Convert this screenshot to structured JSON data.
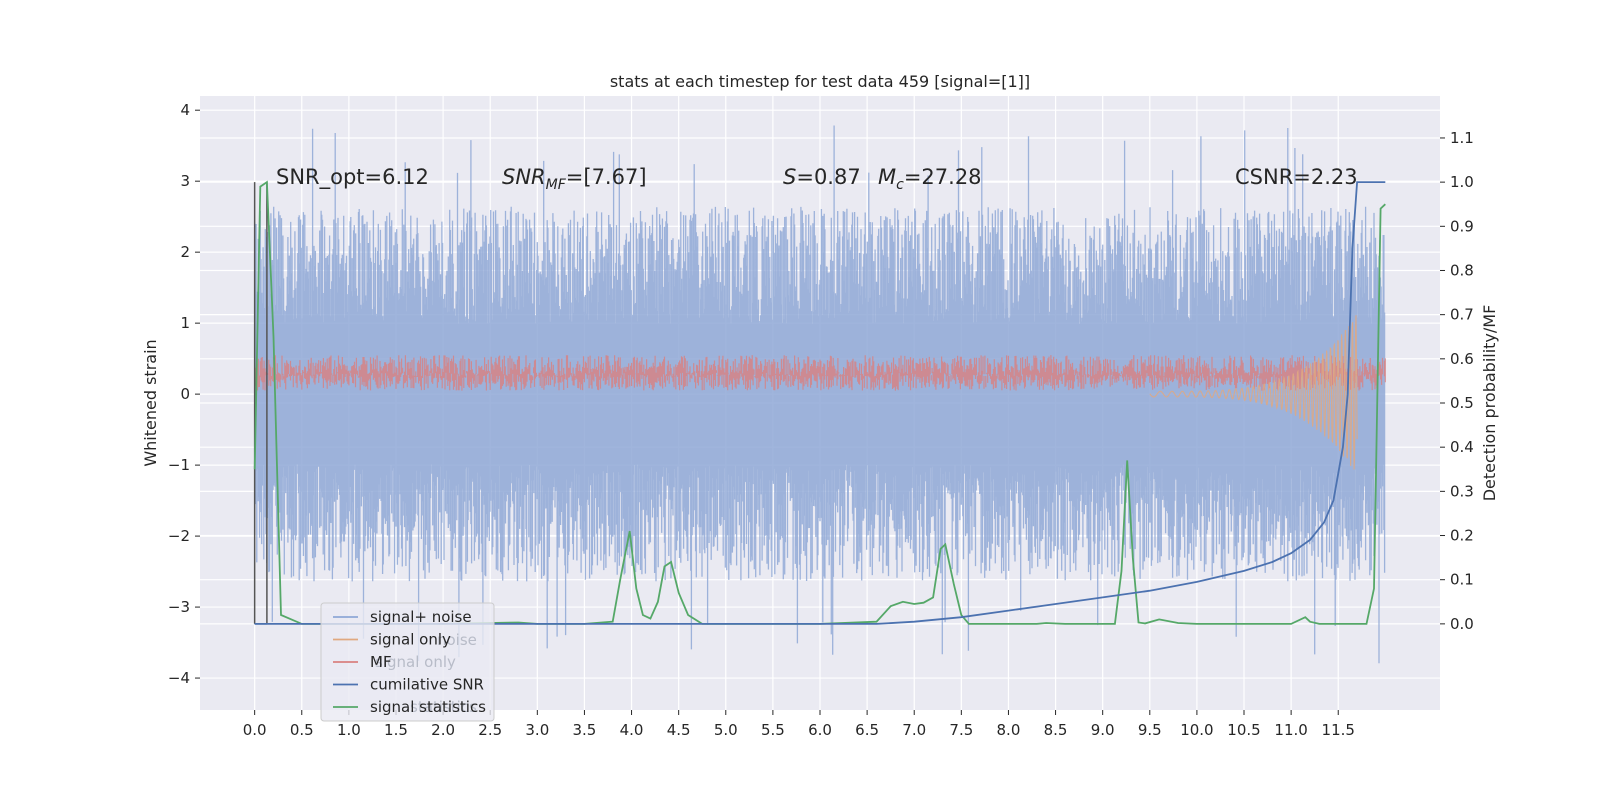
{
  "chart_data": {
    "type": "line",
    "title": "stats at each timestep for test data 459 [signal=[1]]",
    "xlabel": "",
    "ylabel_left": "Whitened strain",
    "ylabel_right": "Detection probability/MF",
    "xlim": [
      -0.58,
      12.58
    ],
    "ylim_left": [
      -4.45,
      4.2
    ],
    "ylim_right": [
      -0.195,
      1.195
    ],
    "x_ticks": [
      "0.0",
      "0.5",
      "1.0",
      "1.5",
      "2.0",
      "2.5",
      "3.0",
      "3.5",
      "4.0",
      "4.5",
      "5.0",
      "5.5",
      "6.0",
      "6.5",
      "7.0",
      "7.5",
      "8.0",
      "8.5",
      "9.0",
      "9.5",
      "10.0",
      "10.5",
      "11.0",
      "11.5"
    ],
    "y_ticks_left": [
      "−4",
      "−3",
      "−2",
      "−1",
      "0",
      "1",
      "2",
      "3",
      "4"
    ],
    "y_ticks_right": [
      "0.0",
      "0.1",
      "0.2",
      "0.3",
      "0.4",
      "0.5",
      "0.6",
      "0.7",
      "0.8",
      "0.9",
      "1.0",
      "1.1"
    ],
    "annotations": {
      "snr_opt": "SNR_opt=6.12",
      "snr_mf_sym": "SNR",
      "snr_mf_sub": "MF",
      "snr_mf_val": "=[7.67]",
      "s_sym": "S",
      "s_val": "=0.87",
      "mc_sym": "M",
      "mc_sub": "c",
      "mc_val": "=27.28",
      "csnr": "CSNR=2.23"
    },
    "legend_position": "lower-left",
    "legend": [
      {
        "label": "signal+ noise",
        "color": "#8fa8d6"
      },
      {
        "label": "signal only",
        "color": "#e0a880"
      },
      {
        "label": "MF",
        "color": "#d98080"
      },
      {
        "label": "cumilative SNR",
        "color": "#4c72b0"
      },
      {
        "label": "signal statistics",
        "color": "#55a868"
      }
    ],
    "ghost_legend": {
      "noise_suffix": "noise",
      "signal_only": "signal only",
      "statistics": "statistics"
    },
    "series": [
      {
        "name": "signal statistics",
        "axis": "right",
        "color": "#55a868",
        "x": [
          0,
          0.06,
          0.13,
          0.2,
          0.28,
          0.5,
          1.0,
          2.0,
          2.8,
          3.0,
          3.5,
          3.8,
          3.88,
          3.98,
          4.05,
          4.12,
          4.2,
          4.28,
          4.35,
          4.42,
          4.5,
          4.6,
          4.75,
          5.0,
          5.5,
          6.0,
          6.6,
          6.75,
          6.88,
          7.0,
          7.1,
          7.2,
          7.28,
          7.33,
          7.42,
          7.5,
          7.58,
          7.7,
          8.0,
          8.3,
          8.4,
          8.6,
          9.0,
          9.13,
          9.2,
          9.26,
          9.32,
          9.38,
          9.45,
          9.6,
          9.8,
          10.0,
          10.5,
          11.0,
          11.15,
          11.2,
          11.3,
          11.5,
          11.8,
          11.88,
          11.95,
          12.0
        ],
        "y": [
          0.35,
          0.99,
          1.0,
          0.65,
          0.02,
          0.0,
          0.0,
          0.0,
          0.003,
          0.0,
          0.0,
          0.005,
          0.1,
          0.21,
          0.08,
          0.02,
          0.012,
          0.05,
          0.13,
          0.14,
          0.07,
          0.02,
          0.0,
          0.0,
          0.0,
          0.0,
          0.005,
          0.04,
          0.05,
          0.045,
          0.048,
          0.06,
          0.17,
          0.18,
          0.09,
          0.02,
          0.0,
          0.0,
          0.0,
          0.0,
          0.002,
          0.0,
          0.0,
          0.0,
          0.12,
          0.37,
          0.15,
          0.003,
          0.001,
          0.01,
          0.002,
          0.0,
          0.0,
          0.0,
          0.015,
          0.005,
          0.0,
          0.0,
          0.0,
          0.08,
          0.94,
          0.95
        ]
      },
      {
        "name": "cumilative SNR",
        "axis": "right",
        "color": "#4c72b0",
        "x": [
          0,
          6.6,
          7.0,
          7.5,
          8.0,
          8.5,
          9.0,
          9.5,
          10.0,
          10.5,
          10.8,
          11.0,
          11.2,
          11.35,
          11.45,
          11.55,
          11.6,
          11.62,
          11.65,
          11.7,
          12.0
        ],
        "y": [
          0,
          0,
          0.005,
          0.015,
          0.03,
          0.045,
          0.06,
          0.075,
          0.095,
          0.12,
          0.14,
          0.16,
          0.19,
          0.23,
          0.28,
          0.4,
          0.52,
          0.65,
          0.85,
          1.0,
          1.0
        ]
      }
    ],
    "noise_band": {
      "name": "signal+ noise",
      "axis": "left",
      "color": "#8fa8d6",
      "x_range": [
        0,
        12.0
      ],
      "typical_amplitude": 2.2,
      "peak_amplitude": 3.8
    },
    "vertical_markers": {
      "axis": "right",
      "x": [
        0.0,
        0.13
      ],
      "y": [
        0,
        1.0
      ],
      "color": "#555555"
    }
  }
}
